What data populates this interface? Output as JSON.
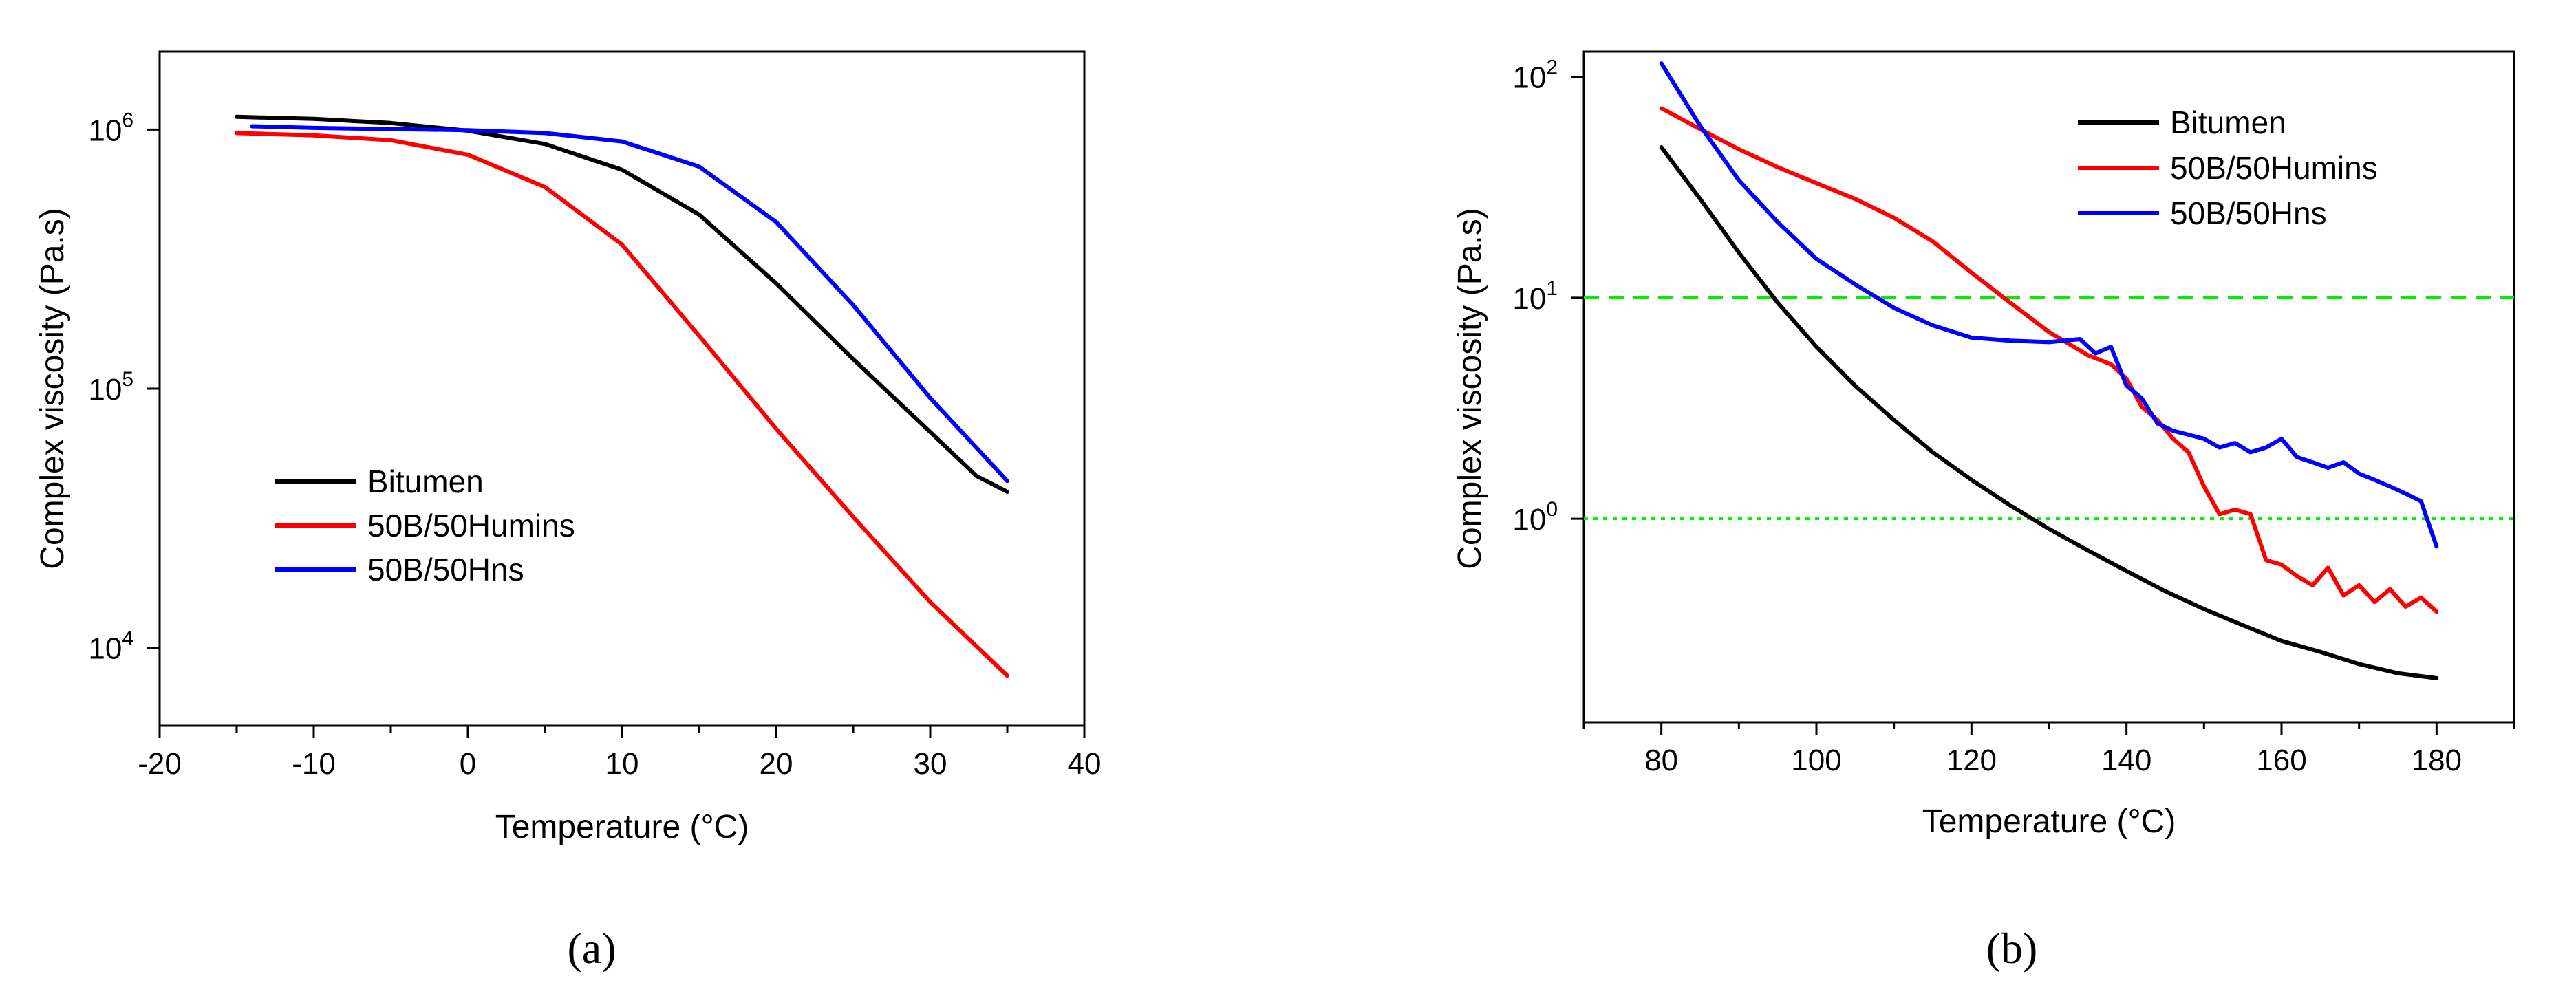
{
  "chart_data": [
    {
      "id": "a",
      "type": "line",
      "panel_label": "(a)",
      "xlabel": "Temperature (°C)",
      "ylabel": "Complex viscosity (Pa.s)",
      "yscale": "log",
      "xlim": [
        -20,
        40
      ],
      "ylim": [
        5000,
        2000000
      ],
      "xticks": [
        -20,
        -10,
        0,
        10,
        20,
        30,
        40
      ],
      "yticks": [
        {
          "value": 10000,
          "base": "10",
          "exp": "4"
        },
        {
          "value": 100000,
          "base": "10",
          "exp": "5"
        },
        {
          "value": 1000000,
          "base": "10",
          "exp": "6"
        }
      ],
      "legend_placement": "lower-left",
      "grid": false,
      "series": [
        {
          "name": "Bitumen",
          "color": "#000000",
          "x": [
            -15,
            -10,
            -5,
            0,
            5,
            10,
            15,
            20,
            25,
            30,
            33,
            35
          ],
          "y": [
            1120000,
            1100000,
            1060000,
            990000,
            880000,
            700000,
            470000,
            255000,
            130000,
            68000,
            46000,
            40000
          ]
        },
        {
          "name": "50B/50Humins",
          "color": "#ff0000",
          "x": [
            -15,
            -10,
            -5,
            0,
            5,
            10,
            15,
            20,
            25,
            30,
            35
          ],
          "y": [
            970000,
            950000,
            910000,
            800000,
            600000,
            360000,
            160000,
            70000,
            32000,
            15000,
            7800
          ]
        },
        {
          "name": "50B/50Hns",
          "color": "#0000ff",
          "x": [
            -14,
            -10,
            -5,
            0,
            5,
            10,
            15,
            20,
            25,
            30,
            35
          ],
          "y": [
            1030000,
            1015000,
            1005000,
            995000,
            970000,
            900000,
            720000,
            440000,
            210000,
            92000,
            44000
          ]
        }
      ]
    },
    {
      "id": "b",
      "type": "line",
      "panel_label": "(b)",
      "xlabel": "Temperature (°C)",
      "ylabel": "Complex viscosity (Pa.s)",
      "yscale": "log",
      "xlim": [
        70,
        190
      ],
      "ylim": [
        0.12,
        130
      ],
      "xticks": [
        80,
        100,
        120,
        140,
        160,
        180
      ],
      "yticks": [
        {
          "value": 1,
          "base": "10",
          "exp": "0"
        },
        {
          "value": 10,
          "base": "10",
          "exp": "1"
        },
        {
          "value": 100,
          "base": "10",
          "exp": "2"
        }
      ],
      "legend_placement": "top-right",
      "grid": false,
      "reference_lines": [
        {
          "y": 10,
          "color": "#00ee00",
          "style": "dashed"
        },
        {
          "y": 1,
          "color": "#00ee00",
          "style": "dotted"
        }
      ],
      "series": [
        {
          "name": "Bitumen",
          "color": "#000000",
          "x": [
            80,
            85,
            90,
            95,
            100,
            105,
            110,
            115,
            120,
            125,
            130,
            135,
            140,
            145,
            150,
            155,
            160,
            165,
            170,
            175,
            180
          ],
          "y": [
            48,
            28,
            16,
            9.5,
            6,
            4,
            2.8,
            2.0,
            1.5,
            1.15,
            0.9,
            0.72,
            0.58,
            0.47,
            0.39,
            0.33,
            0.28,
            0.25,
            0.22,
            0.2,
            0.19
          ]
        },
        {
          "name": "50B/50Humins",
          "color": "#ff0000",
          "x": [
            80,
            85,
            90,
            95,
            100,
            105,
            110,
            115,
            120,
            125,
            130,
            135,
            138,
            140,
            142,
            144,
            146,
            148,
            150,
            152,
            154,
            156,
            158,
            160,
            162,
            164,
            166,
            168,
            170,
            172,
            174,
            176,
            178,
            180
          ],
          "y": [
            72,
            58,
            47,
            39,
            33,
            28,
            23,
            18,
            13,
            9.5,
            7,
            5.5,
            5,
            4.3,
            3.2,
            2.8,
            2.3,
            2.0,
            1.4,
            1.05,
            1.1,
            1.05,
            0.65,
            0.62,
            0.55,
            0.5,
            0.6,
            0.45,
            0.5,
            0.42,
            0.48,
            0.4,
            0.44,
            0.38
          ]
        },
        {
          "name": "50B/50Hns",
          "color": "#0000ff",
          "x": [
            80,
            85,
            90,
            95,
            100,
            105,
            110,
            115,
            120,
            125,
            130,
            134,
            136,
            138,
            140,
            142,
            144,
            146,
            148,
            150,
            152,
            154,
            156,
            158,
            160,
            162,
            164,
            166,
            168,
            170,
            172,
            174,
            176,
            178,
            180
          ],
          "y": [
            115,
            60,
            34,
            22,
            15,
            11.5,
            9,
            7.5,
            6.6,
            6.4,
            6.3,
            6.5,
            5.6,
            6.0,
            4.0,
            3.5,
            2.7,
            2.5,
            2.4,
            2.3,
            2.1,
            2.2,
            2.0,
            2.1,
            2.3,
            1.9,
            1.8,
            1.7,
            1.8,
            1.6,
            1.5,
            1.4,
            1.3,
            1.2,
            0.75
          ]
        }
      ]
    }
  ]
}
